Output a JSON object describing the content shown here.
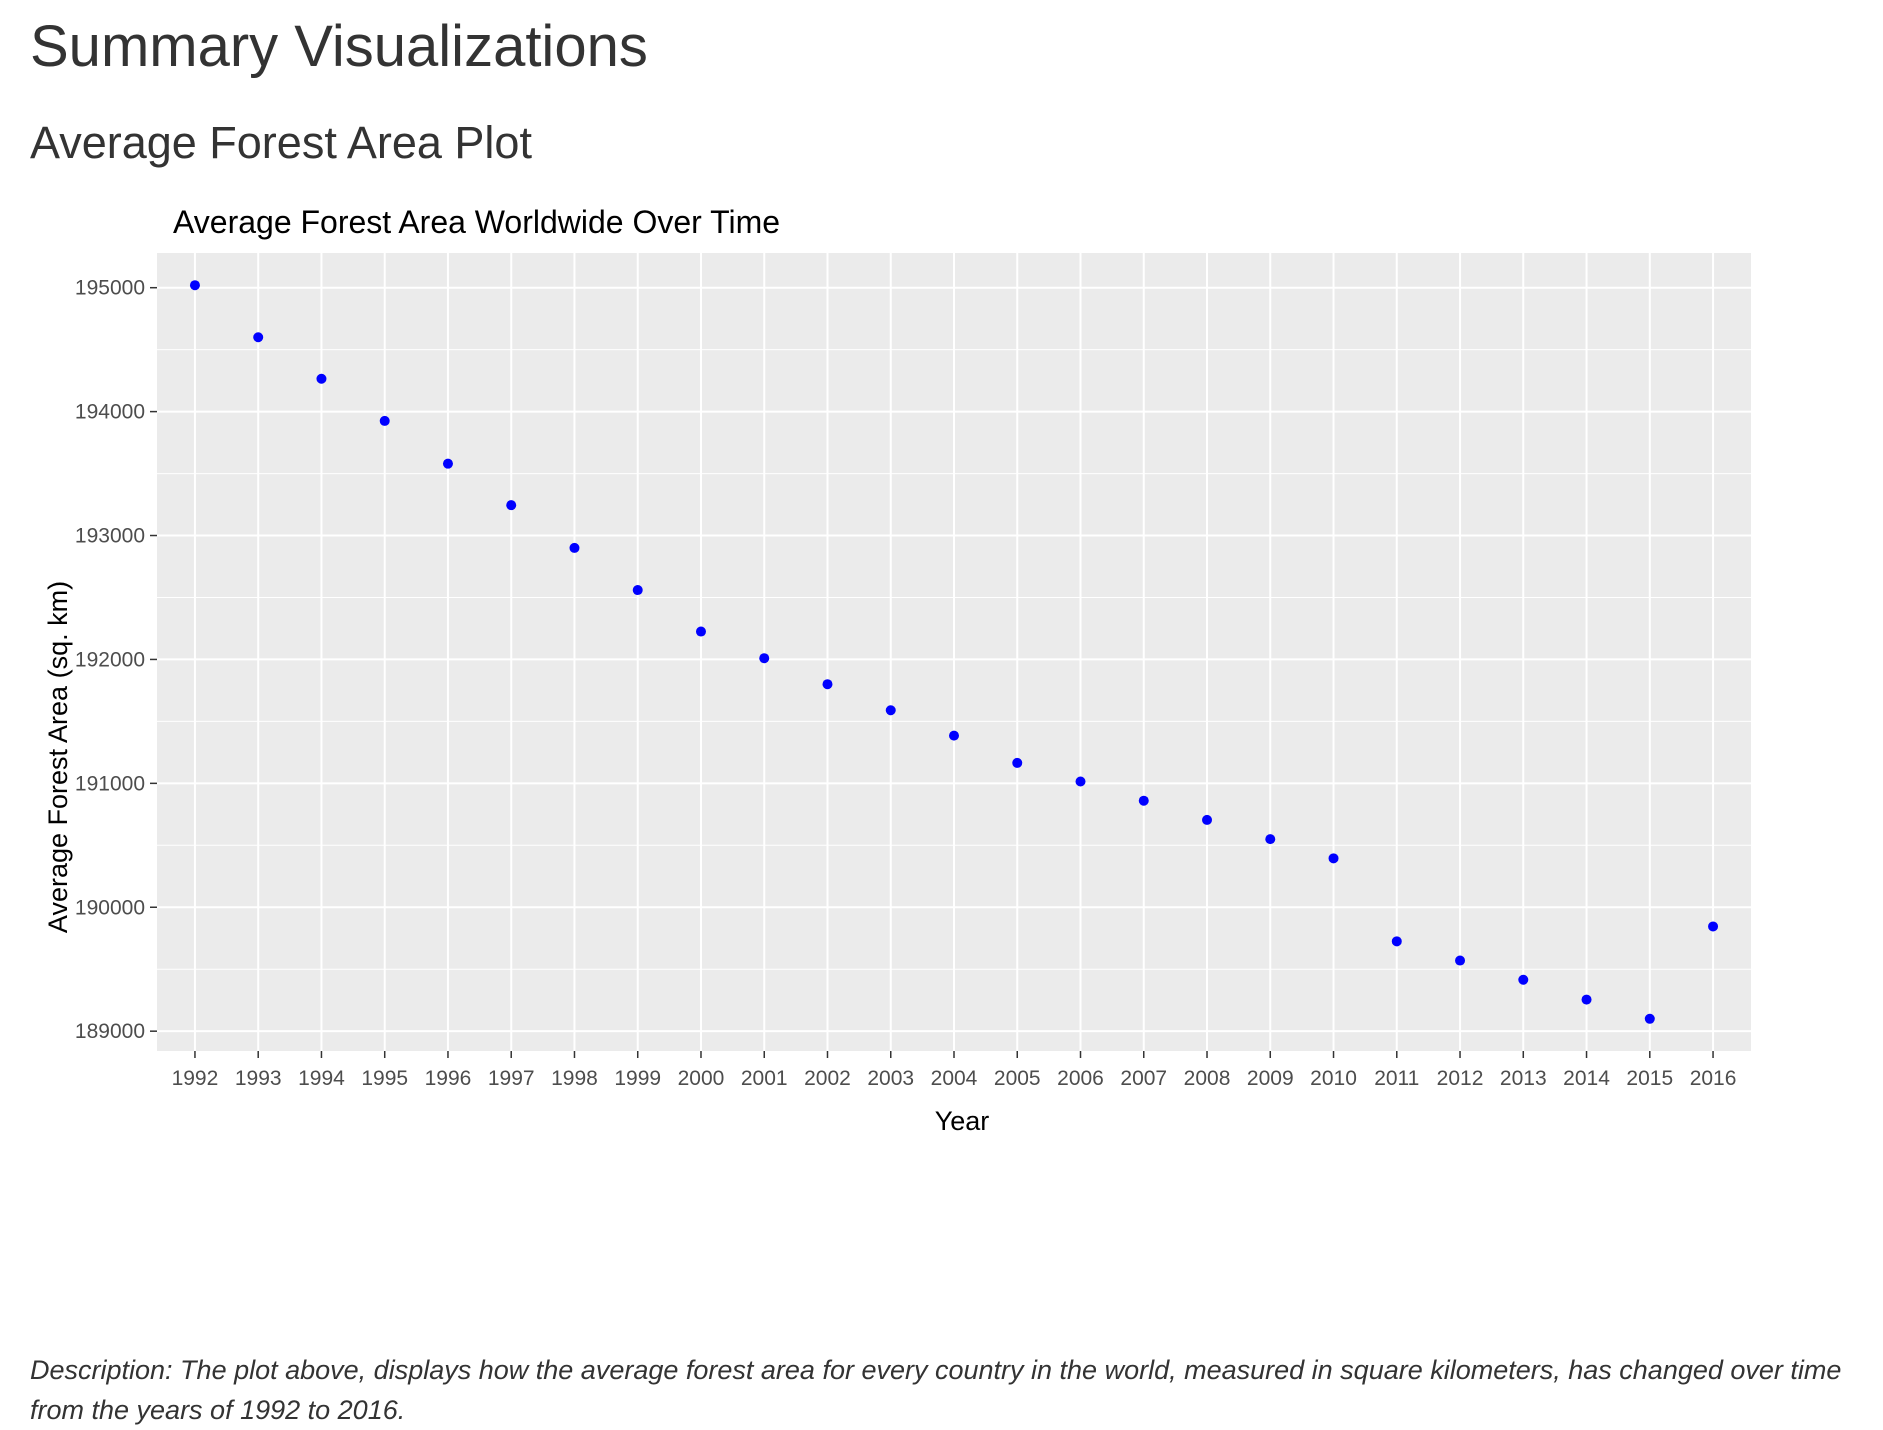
{
  "page": {
    "title": "Summary Visualizations",
    "section_title": "Average Forest Area Plot",
    "description": "Description: The plot above, displays how the average forest area for every country in the world, measured in square kilometers, has changed over time from the years of 1992 to 2016."
  },
  "chart_data": {
    "type": "scatter",
    "title": "Average Forest Area Worldwide Over Time",
    "xlabel": "Year",
    "ylabel": "Average Forest Area (sq. km)",
    "x": [
      1992,
      1993,
      1994,
      1995,
      1996,
      1997,
      1998,
      1999,
      2000,
      2001,
      2002,
      2003,
      2004,
      2005,
      2006,
      2007,
      2008,
      2009,
      2010,
      2011,
      2012,
      2013,
      2014,
      2015,
      2016
    ],
    "series": [
      {
        "values": [
          195020,
          194600,
          194265,
          193925,
          193580,
          193245,
          192900,
          192560,
          192225,
          192010,
          191800,
          191590,
          191385,
          191165,
          191015,
          190860,
          190705,
          190550,
          190395,
          189725,
          189570,
          189415,
          189255,
          189100,
          189845
        ],
        "color": "#0000ff"
      }
    ],
    "xticks": [
      "1992",
      "1993",
      "1994",
      "1995",
      "1996",
      "1997",
      "1998",
      "1999",
      "2000",
      "2001",
      "2002",
      "2003",
      "2004",
      "2005",
      "2006",
      "2007",
      "2008",
      "2009",
      "2010",
      "2011",
      "2012",
      "2013",
      "2014",
      "2015",
      "2016"
    ],
    "yticks": [
      189000,
      190000,
      191000,
      192000,
      193000,
      194000,
      195000
    ],
    "ytick_labels": [
      "189000",
      "190000",
      "191000",
      "192000",
      "193000",
      "194000",
      "195000"
    ],
    "ylim": [
      188840,
      195280
    ],
    "grid": true,
    "panel_background": "#ebebeb",
    "grid_color": "#ffffff",
    "legend": "none"
  }
}
